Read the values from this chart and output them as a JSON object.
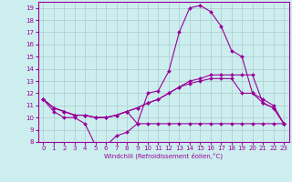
{
  "x": [
    0,
    1,
    2,
    3,
    4,
    5,
    6,
    7,
    8,
    9,
    10,
    11,
    12,
    13,
    14,
    15,
    16,
    17,
    18,
    19,
    20,
    21,
    22,
    23
  ],
  "series1": [
    11.5,
    10.5,
    10.0,
    10.0,
    9.5,
    7.7,
    7.7,
    8.5,
    8.8,
    9.5,
    12.0,
    12.2,
    13.8,
    17.0,
    19.0,
    19.2,
    18.7,
    17.5,
    15.5,
    15.0,
    12.0,
    11.2,
    10.8,
    9.5
  ],
  "series2": [
    11.5,
    10.8,
    10.5,
    10.2,
    10.2,
    10.0,
    10.0,
    10.2,
    10.5,
    10.8,
    11.2,
    11.5,
    12.0,
    12.5,
    13.0,
    13.2,
    13.5,
    13.5,
    13.5,
    13.5,
    13.5,
    11.2,
    10.8,
    9.5
  ],
  "series3": [
    11.5,
    10.8,
    10.5,
    10.2,
    10.2,
    10.0,
    10.0,
    10.2,
    10.5,
    10.8,
    11.2,
    11.5,
    12.0,
    12.5,
    12.8,
    13.0,
    13.2,
    13.2,
    13.2,
    12.0,
    12.0,
    11.5,
    11.0,
    9.5
  ],
  "series4": [
    11.5,
    10.8,
    10.5,
    10.2,
    10.2,
    10.0,
    10.0,
    10.2,
    10.5,
    9.5,
    9.5,
    9.5,
    9.5,
    9.5,
    9.5,
    9.5,
    9.5,
    9.5,
    9.5,
    9.5,
    9.5,
    9.5,
    9.5,
    9.5
  ],
  "line_color": "#990099",
  "bg_color": "#cceeee",
  "grid_color": "#aacccc",
  "xlabel": "Windchill (Refroidissement éolien,°C)",
  "ylim": [
    8,
    19.5
  ],
  "xlim": [
    -0.5,
    23.5
  ],
  "yticks": [
    8,
    9,
    10,
    11,
    12,
    13,
    14,
    15,
    16,
    17,
    18,
    19
  ],
  "xticks": [
    0,
    1,
    2,
    3,
    4,
    5,
    6,
    7,
    8,
    9,
    10,
    11,
    12,
    13,
    14,
    15,
    16,
    17,
    18,
    19,
    20,
    21,
    22,
    23
  ],
  "tick_fontsize": 5,
  "xlabel_fontsize": 5,
  "linewidth": 0.8,
  "markersize": 2
}
